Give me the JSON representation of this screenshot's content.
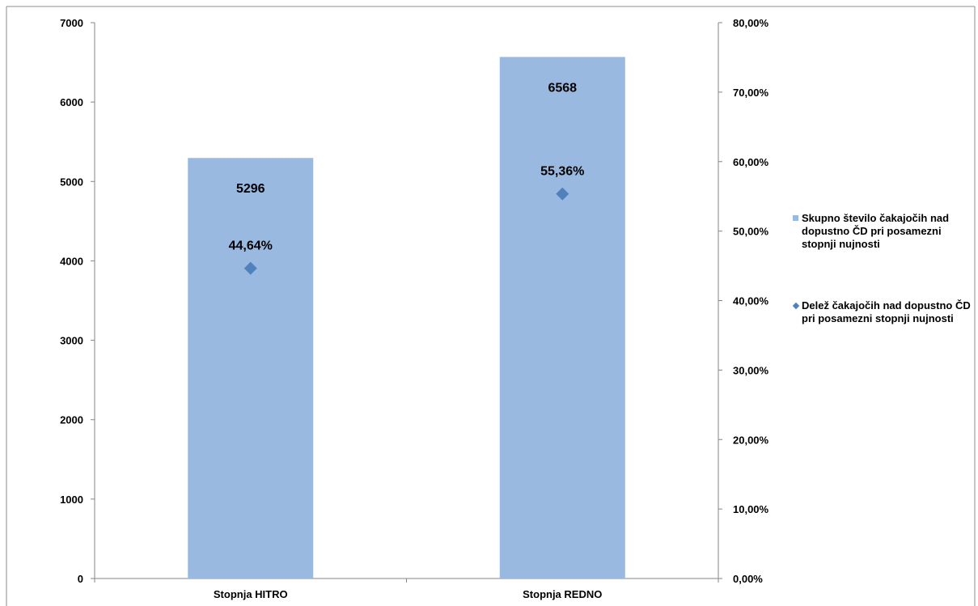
{
  "chart_data": {
    "type": "bar",
    "categories": [
      "Stopnja HITRO",
      "Stopnja REDNO"
    ],
    "series": [
      {
        "name": "Skupno število čakajočih nad dopustno ČD pri posamezni stopnji nujnosti",
        "kind": "bar",
        "axis": "left",
        "values": [
          5296,
          6568
        ],
        "labels": [
          "5296",
          "6568"
        ],
        "color": "#99B9E0"
      },
      {
        "name": "Delež čakajočih nad dopustno ČD pri posamezni stopnji nujnosti",
        "kind": "scatter",
        "marker": "diamond",
        "axis": "right",
        "values": [
          44.64,
          55.36
        ],
        "labels": [
          "44,64%",
          "55,36%"
        ],
        "color": "#4F81BD"
      }
    ],
    "y_left": {
      "ylim": [
        0,
        7000
      ],
      "ticks": [
        "0",
        "1000",
        "2000",
        "3000",
        "4000",
        "5000",
        "6000",
        "7000"
      ]
    },
    "y_right": {
      "ylim": [
        0,
        80
      ],
      "ticks": [
        "0,00%",
        "10,00%",
        "20,00%",
        "30,00%",
        "40,00%",
        "50,00%",
        "60,00%",
        "70,00%",
        "80,00%"
      ]
    },
    "grid": false,
    "legend_position": "right"
  }
}
